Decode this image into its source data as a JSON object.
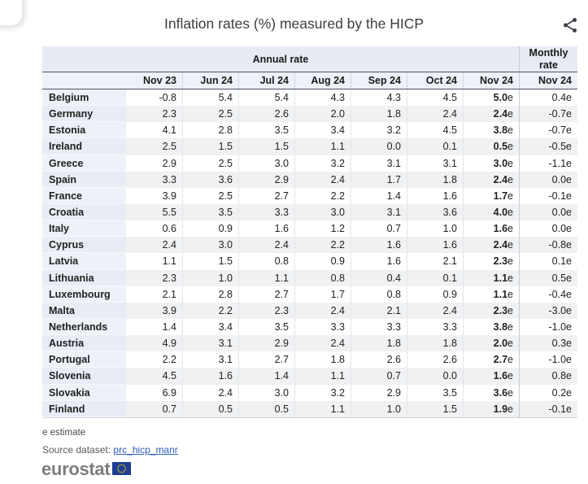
{
  "page": {
    "title": "Inflation rates (%) measured by the HICP"
  },
  "toolbar": {
    "share_icon": "share-icon"
  },
  "table": {
    "group_headers": {
      "annual": "Annual rate",
      "monthly": "Monthly rate"
    },
    "columns": [
      "Nov 23",
      "Jun 24",
      "Jul 24",
      "Aug 24",
      "Sep 24",
      "Oct 24",
      "Nov 24"
    ],
    "monthly_column": "Nov 24",
    "rows": [
      {
        "country": "Belgium",
        "annual": [
          "-0.8",
          "5.4",
          "5.4",
          "4.3",
          "4.3",
          "4.5"
        ],
        "nov24": "5.0e",
        "monthly_nov24": "0.4e"
      },
      {
        "country": "Germany",
        "annual": [
          "2.3",
          "2.5",
          "2.6",
          "2.0",
          "1.8",
          "2.4"
        ],
        "nov24": "2.4e",
        "monthly_nov24": "-0.7e"
      },
      {
        "country": "Estonia",
        "annual": [
          "4.1",
          "2.8",
          "3.5",
          "3.4",
          "3.2",
          "4.5"
        ],
        "nov24": "3.8e",
        "monthly_nov24": "-0.7e"
      },
      {
        "country": "Ireland",
        "annual": [
          "2.5",
          "1.5",
          "1.5",
          "1.1",
          "0.0",
          "0.1"
        ],
        "nov24": "0.5e",
        "monthly_nov24": "-0.5e"
      },
      {
        "country": "Greece",
        "annual": [
          "2.9",
          "2.5",
          "3.0",
          "3.2",
          "3.1",
          "3.1"
        ],
        "nov24": "3.0e",
        "monthly_nov24": "-1.1e"
      },
      {
        "country": "Spain",
        "annual": [
          "3.3",
          "3.6",
          "2.9",
          "2.4",
          "1.7",
          "1.8"
        ],
        "nov24": "2.4e",
        "monthly_nov24": "0.0e"
      },
      {
        "country": "France",
        "annual": [
          "3.9",
          "2.5",
          "2.7",
          "2.2",
          "1.4",
          "1.6"
        ],
        "nov24": "1.7e",
        "monthly_nov24": "-0.1e"
      },
      {
        "country": "Croatia",
        "annual": [
          "5.5",
          "3.5",
          "3.3",
          "3.0",
          "3.1",
          "3.6"
        ],
        "nov24": "4.0e",
        "monthly_nov24": "0.0e"
      },
      {
        "country": "Italy",
        "annual": [
          "0.6",
          "0.9",
          "1.6",
          "1.2",
          "0.7",
          "1.0"
        ],
        "nov24": "1.6e",
        "monthly_nov24": "0.0e"
      },
      {
        "country": "Cyprus",
        "annual": [
          "2.4",
          "3.0",
          "2.4",
          "2.2",
          "1.6",
          "1.6"
        ],
        "nov24": "2.4e",
        "monthly_nov24": "-0.8e"
      },
      {
        "country": "Latvia",
        "annual": [
          "1.1",
          "1.5",
          "0.8",
          "0.9",
          "1.6",
          "2.1"
        ],
        "nov24": "2.3e",
        "monthly_nov24": "0.1e"
      },
      {
        "country": "Lithuania",
        "annual": [
          "2.3",
          "1.0",
          "1.1",
          "0.8",
          "0.4",
          "0.1"
        ],
        "nov24": "1.1e",
        "monthly_nov24": "0.5e"
      },
      {
        "country": "Luxembourg",
        "annual": [
          "2.1",
          "2.8",
          "2.7",
          "1.7",
          "0.8",
          "0.9"
        ],
        "nov24": "1.1e",
        "monthly_nov24": "-0.4e"
      },
      {
        "country": "Malta",
        "annual": [
          "3.9",
          "2.2",
          "2.3",
          "2.4",
          "2.1",
          "2.4"
        ],
        "nov24": "2.3e",
        "monthly_nov24": "-3.0e"
      },
      {
        "country": "Netherlands",
        "annual": [
          "1.4",
          "3.4",
          "3.5",
          "3.3",
          "3.3",
          "3.3"
        ],
        "nov24": "3.8e",
        "monthly_nov24": "-1.0e"
      },
      {
        "country": "Austria",
        "annual": [
          "4.9",
          "3.1",
          "2.9",
          "2.4",
          "1.8",
          "1.8"
        ],
        "nov24": "2.0e",
        "monthly_nov24": "0.3e"
      },
      {
        "country": "Portugal",
        "annual": [
          "2.2",
          "3.1",
          "2.7",
          "1.8",
          "2.6",
          "2.6"
        ],
        "nov24": "2.7e",
        "monthly_nov24": "-1.0e"
      },
      {
        "country": "Slovenia",
        "annual": [
          "4.5",
          "1.6",
          "1.4",
          "1.1",
          "0.7",
          "0.0"
        ],
        "nov24": "1.6e",
        "monthly_nov24": "0.8e"
      },
      {
        "country": "Slovakia",
        "annual": [
          "6.9",
          "2.4",
          "3.0",
          "3.2",
          "2.9",
          "3.5"
        ],
        "nov24": "3.6e",
        "monthly_nov24": "0.2e"
      },
      {
        "country": "Finland",
        "annual": [
          "0.7",
          "0.5",
          "0.5",
          "1.1",
          "1.0",
          "1.5"
        ],
        "nov24": "1.9e",
        "monthly_nov24": "-0.1e"
      }
    ]
  },
  "footer": {
    "estimate_note": "e estimate",
    "source_label": "Source dataset:",
    "source_link": "prc_hicp_manr",
    "logo_text": "eurostat"
  },
  "colors": {
    "header_bg": "#e6ebf4",
    "subheader_bg": "#edf1f8",
    "country_col_bg": "#edf1f8",
    "stripe_bg": "#f0f1f2",
    "dark_border": "#4d5563",
    "link_blue": "#2a5cb8",
    "eu_flag_blue": "#1e3e93",
    "eu_star_yellow": "#ffcc00",
    "logo_gray": "#7b7e81"
  }
}
